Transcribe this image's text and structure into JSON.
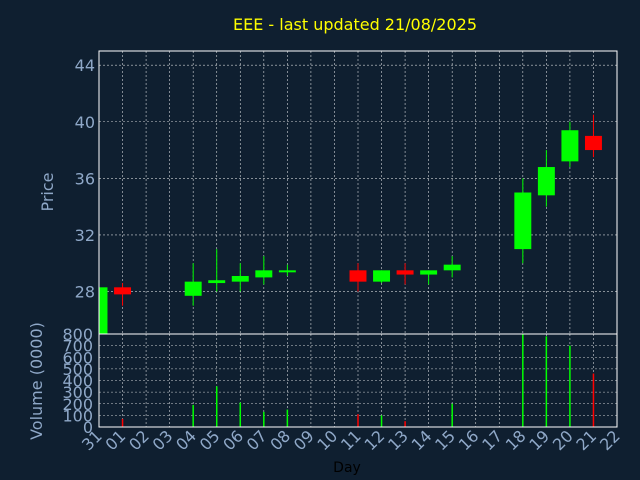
{
  "colors": {
    "background": "#0f1f30",
    "plot_border": "#ffffff",
    "grid": "#ffffff",
    "up": "#00ff00",
    "down": "#ff0000",
    "title": "#ffff00",
    "axis_text": "#8fa8c8",
    "xlabel_text": "#000000"
  },
  "chart_data": [
    {
      "type": "candlestick",
      "title": "EEE - last updated 21/08/2025",
      "ylabel": "Price",
      "ylim": [
        25,
        45
      ],
      "yticks": [
        "28",
        "32",
        "36",
        "40",
        "44"
      ],
      "grid": true,
      "candles": [
        {
          "day": "31",
          "open": 25.0,
          "close": 28.3,
          "high": 28.3,
          "low": 25.0,
          "dir": "up"
        },
        {
          "day": "01",
          "open": 28.3,
          "close": 27.8,
          "high": 28.6,
          "low": 27.0,
          "dir": "down"
        },
        {
          "day": "04",
          "open": 27.7,
          "close": 28.7,
          "high": 30.0,
          "low": 27.0,
          "dir": "up"
        },
        {
          "day": "05",
          "open": 28.6,
          "close": 28.8,
          "high": 31.0,
          "low": 28.0,
          "dir": "up"
        },
        {
          "day": "06",
          "open": 28.7,
          "close": 29.1,
          "high": 30.0,
          "low": 28.0,
          "dir": "up"
        },
        {
          "day": "07",
          "open": 29.0,
          "close": 29.5,
          "high": 30.5,
          "low": 28.5,
          "dir": "up"
        },
        {
          "day": "08",
          "open": 29.4,
          "close": 29.5,
          "high": 29.9,
          "low": 29.1,
          "dir": "up"
        },
        {
          "day": "11",
          "open": 29.5,
          "close": 28.7,
          "high": 30.0,
          "low": 28.0,
          "dir": "down"
        },
        {
          "day": "12",
          "open": 28.7,
          "close": 29.5,
          "high": 29.5,
          "low": 28.6,
          "dir": "up"
        },
        {
          "day": "13",
          "open": 29.5,
          "close": 29.2,
          "high": 30.0,
          "low": 28.5,
          "dir": "down"
        },
        {
          "day": "14",
          "open": 29.2,
          "close": 29.5,
          "high": 29.5,
          "low": 28.5,
          "dir": "up"
        },
        {
          "day": "15",
          "open": 29.5,
          "close": 29.9,
          "high": 30.5,
          "low": 29.0,
          "dir": "up"
        },
        {
          "day": "18",
          "open": 31.0,
          "close": 35.0,
          "high": 36.0,
          "low": 30.0,
          "dir": "up"
        },
        {
          "day": "19",
          "open": 34.8,
          "close": 36.8,
          "high": 38.0,
          "low": 34.0,
          "dir": "up"
        },
        {
          "day": "20",
          "open": 37.2,
          "close": 39.4,
          "high": 40.0,
          "low": 36.8,
          "dir": "up"
        },
        {
          "day": "21",
          "open": 39.0,
          "close": 38.0,
          "high": 40.5,
          "low": 37.5,
          "dir": "down"
        }
      ]
    },
    {
      "type": "bar",
      "ylabel": "Volume (0000)",
      "xlabel": "Day",
      "ylim": [
        0,
        800
      ],
      "yticks": [
        "0",
        "100",
        "200",
        "300",
        "400",
        "500",
        "600",
        "700",
        "800"
      ],
      "xticks": [
        "31",
        "01",
        "02",
        "03",
        "04",
        "05",
        "06",
        "07",
        "08",
        "09",
        "10",
        "11",
        "12",
        "13",
        "14",
        "15",
        "16",
        "17",
        "18",
        "19",
        "20",
        "21",
        "22"
      ],
      "grid": true,
      "bars": [
        {
          "day": "01",
          "value": 70,
          "dir": "down"
        },
        {
          "day": "04",
          "value": 190,
          "dir": "up"
        },
        {
          "day": "05",
          "value": 350,
          "dir": "up"
        },
        {
          "day": "06",
          "value": 210,
          "dir": "up"
        },
        {
          "day": "07",
          "value": 130,
          "dir": "up"
        },
        {
          "day": "08",
          "value": 150,
          "dir": "up"
        },
        {
          "day": "11",
          "value": 110,
          "dir": "down"
        },
        {
          "day": "12",
          "value": 100,
          "dir": "up"
        },
        {
          "day": "13",
          "value": 50,
          "dir": "down"
        },
        {
          "day": "15",
          "value": 200,
          "dir": "up"
        },
        {
          "day": "18",
          "value": 800,
          "dir": "up"
        },
        {
          "day": "19",
          "value": 780,
          "dir": "up"
        },
        {
          "day": "20",
          "value": 700,
          "dir": "up"
        },
        {
          "day": "21",
          "value": 460,
          "dir": "down"
        }
      ]
    }
  ]
}
